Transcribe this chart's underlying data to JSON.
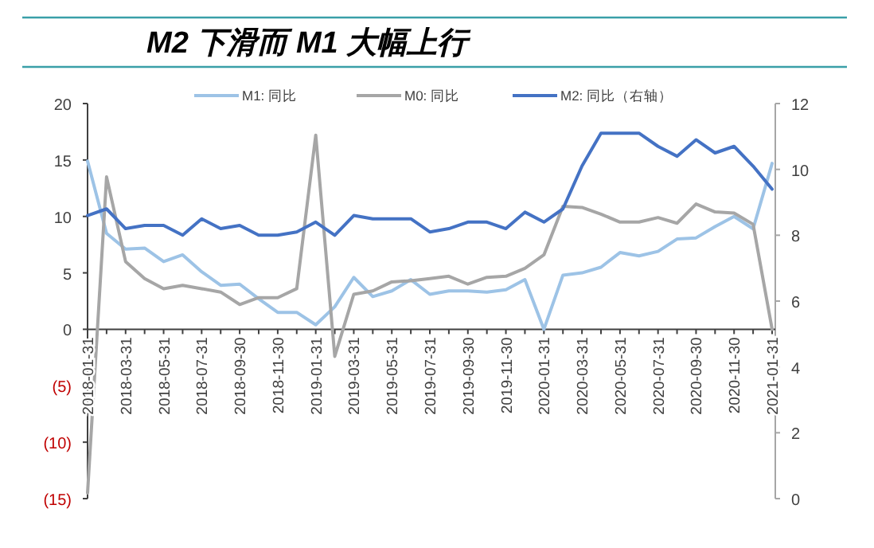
{
  "chart_data": {
    "type": "line",
    "title": "M2 下滑而 M1 大幅上行",
    "legend": "top",
    "categories": [
      "2018-01-31",
      null,
      "2018-03-31",
      null,
      "2018-05-31",
      null,
      "2018-07-31",
      null,
      "2018-09-30",
      null,
      "2018-11-30",
      null,
      "2019-01-31",
      null,
      "2019-03-31",
      null,
      "2019-05-31",
      null,
      "2019-07-31",
      null,
      "2019-09-30",
      null,
      "2019-11-30",
      null,
      "2020-01-31",
      null,
      "2020-03-31",
      null,
      "2020-05-31",
      null,
      "2020-07-31",
      null,
      "2020-09-30",
      null,
      "2020-11-30",
      null,
      "2021-01-31"
    ],
    "ylim": [
      -15,
      20
    ],
    "yticks": [
      {
        "value": -15,
        "label": "(15)"
      },
      {
        "value": -10,
        "label": "(10)"
      },
      {
        "value": -5,
        "label": "(5)"
      },
      0,
      5,
      10,
      15,
      20
    ],
    "y2lim": [
      0,
      12
    ],
    "y2ticks": [
      0,
      2,
      4,
      6,
      8,
      10,
      12
    ],
    "series": [
      {
        "name": "M1: 同比",
        "color": "#9dc3e6",
        "values": [
          14.9,
          8.5,
          7.1,
          7.2,
          6.0,
          6.6,
          5.1,
          3.9,
          4.0,
          2.7,
          1.5,
          1.5,
          0.4,
          2.0,
          4.6,
          2.9,
          3.4,
          4.4,
          3.1,
          3.4,
          3.4,
          3.3,
          3.5,
          4.4,
          0.0,
          4.8,
          5.0,
          5.5,
          6.8,
          6.5,
          6.9,
          8.0,
          8.1,
          9.1,
          10.0,
          8.9,
          14.7
        ]
      },
      {
        "name": "M0: 同比",
        "color": "#a6a6a6",
        "values": [
          -14.5,
          13.5,
          6.0,
          4.5,
          3.6,
          3.9,
          3.6,
          3.3,
          2.2,
          2.8,
          2.8,
          3.6,
          17.2,
          -2.4,
          3.1,
          3.4,
          4.2,
          4.3,
          4.5,
          4.7,
          4.0,
          4.6,
          4.7,
          5.4,
          6.6,
          10.9,
          10.8,
          10.2,
          9.5,
          9.5,
          9.9,
          9.4,
          11.1,
          10.4,
          10.3,
          9.3,
          0.0
        ]
      },
      {
        "name": "M2: 同比（右轴）",
        "color": "#4472c4",
        "axis": "y2",
        "values": [
          8.6,
          8.8,
          8.2,
          8.3,
          8.3,
          8.0,
          8.5,
          8.2,
          8.3,
          8.0,
          8.0,
          8.1,
          8.4,
          8.0,
          8.6,
          8.5,
          8.5,
          8.5,
          8.1,
          8.2,
          8.4,
          8.4,
          8.2,
          8.7,
          8.4,
          8.8,
          10.1,
          11.1,
          11.1,
          11.1,
          10.7,
          10.4,
          10.9,
          10.5,
          10.7,
          10.1,
          9.4
        ]
      }
    ]
  }
}
